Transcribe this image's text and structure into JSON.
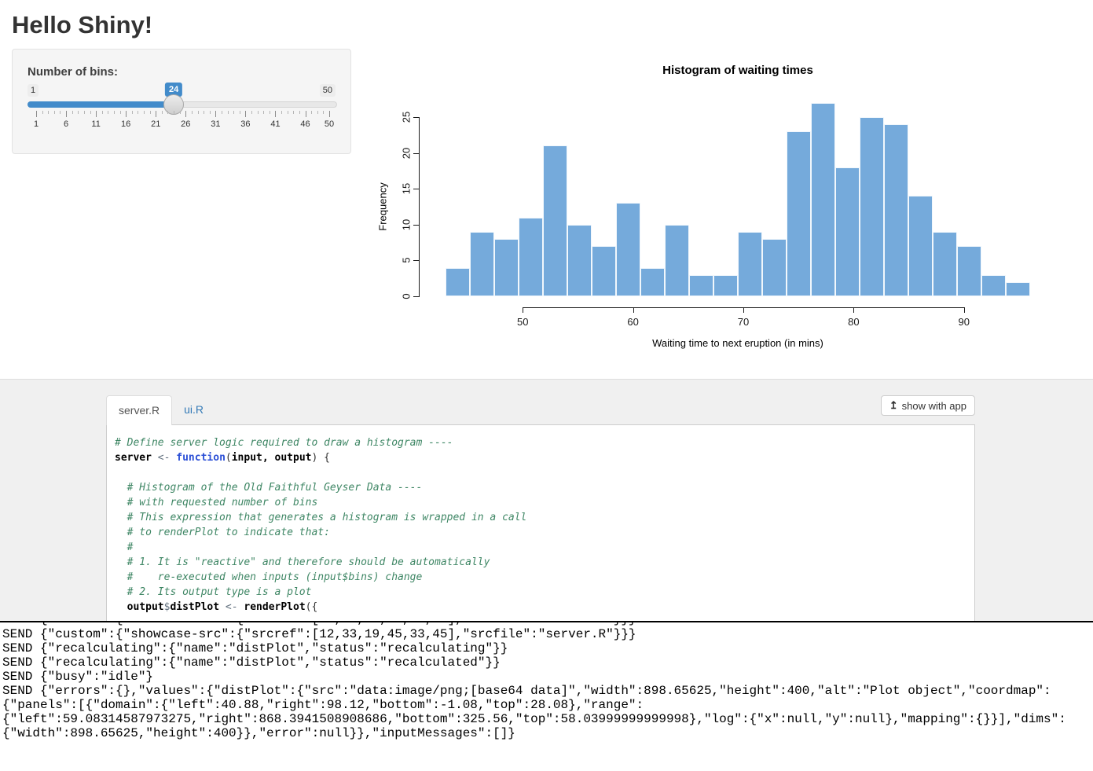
{
  "page": {
    "title": "Hello Shiny!"
  },
  "bins_slider": {
    "label": "Number of bins:",
    "min": 1,
    "max": 50,
    "value": 24,
    "min_label": "1",
    "max_label": "50",
    "value_label": "24",
    "grid_labels": [
      1,
      6,
      11,
      16,
      21,
      26,
      31,
      36,
      41,
      46,
      50
    ],
    "accent_color": "#428bca"
  },
  "chart_data": {
    "type": "bar",
    "title": "Histogram of waiting times",
    "xlabel": "Waiting time to next eruption (in mins)",
    "ylabel": "Frequency",
    "xlim": [
      43,
      96
    ],
    "ylim": [
      0,
      25
    ],
    "bins": 24,
    "bin_edges_note": "24 equal bins from 43 to 96",
    "counts": [
      4,
      9,
      8,
      11,
      21,
      10,
      7,
      13,
      4,
      10,
      3,
      3,
      9,
      8,
      23,
      27,
      18,
      25,
      24,
      14,
      9,
      7,
      3,
      2
    ],
    "x_ticks": [
      50,
      60,
      70,
      80,
      90
    ],
    "y_ticks": [
      0,
      5,
      10,
      15,
      20,
      25
    ],
    "bar_color": "#75AADB",
    "bar_border": "#FFFFFF",
    "grid": false,
    "legend": false
  },
  "showcase": {
    "tabs": [
      {
        "label": "server.R",
        "active": true
      },
      {
        "label": "ui.R",
        "active": false
      }
    ],
    "show_with_app_label": "show with app",
    "show_with_app_icon": "level-up-arrow",
    "code_lines": [
      [
        {
          "c": "cm",
          "t": "# Define server logic required to draw a histogram ----"
        }
      ],
      [
        {
          "c": "id",
          "t": "server"
        },
        {
          "c": "op",
          "t": " <- "
        },
        {
          "c": "kw",
          "t": "function"
        },
        {
          "c": "pn",
          "t": "("
        },
        {
          "c": "id",
          "t": "input, output"
        },
        {
          "c": "pn",
          "t": ") {"
        }
      ],
      [],
      [
        {
          "c": "cm",
          "t": "  # Histogram of the Old Faithful Geyser Data ----"
        }
      ],
      [
        {
          "c": "cm",
          "t": "  # with requested number of bins"
        }
      ],
      [
        {
          "c": "cm",
          "t": "  # This expression that generates a histogram is wrapped in a call"
        }
      ],
      [
        {
          "c": "cm",
          "t": "  # to renderPlot to indicate that:"
        }
      ],
      [
        {
          "c": "cm",
          "t": "  #"
        }
      ],
      [
        {
          "c": "cm",
          "t": "  # 1. It is \"reactive\" and therefore should be automatically"
        }
      ],
      [
        {
          "c": "cm",
          "t": "  #    re-executed when inputs (input$bins) change"
        }
      ],
      [
        {
          "c": "cm",
          "t": "  # 2. Its output type is a plot"
        }
      ],
      [
        {
          "c": "id",
          "t": "  output"
        },
        {
          "c": "op",
          "t": "$"
        },
        {
          "c": "id",
          "t": "distPlot"
        },
        {
          "c": "op",
          "t": " <- "
        },
        {
          "c": "id",
          "t": "renderPlot"
        },
        {
          "c": "pn",
          "t": "({"
        }
      ]
    ]
  },
  "console": {
    "clipped_line": "SEND {\"custom\":{\"showcase-src\":{\"srcref\":[12,33,19,45,33,45],\"srcfile\":\"server.R\"}}}",
    "lines": [
      "SEND {\"custom\":{\"showcase-src\":{\"srcref\":[12,33,19,45,33,45],\"srcfile\":\"server.R\"}}}",
      "SEND {\"recalculating\":{\"name\":\"distPlot\",\"status\":\"recalculating\"}}",
      "SEND {\"recalculating\":{\"name\":\"distPlot\",\"status\":\"recalculated\"}}",
      "SEND {\"busy\":\"idle\"}",
      "SEND {\"errors\":{},\"values\":{\"distPlot\":{\"src\":\"data:image/png;[base64 data]\",\"width\":898.65625,\"height\":400,\"alt\":\"Plot object\",\"coordmap\":",
      "{\"panels\":[{\"domain\":{\"left\":40.88,\"right\":98.12,\"bottom\":-1.08,\"top\":28.08},\"range\":",
      "{\"left\":59.08314587973275,\"right\":868.3941508908686,\"bottom\":325.56,\"top\":58.03999999999998},\"log\":{\"x\":null,\"y\":null},\"mapping\":{}}],\"dims\":",
      "{\"width\":898.65625,\"height\":400}},\"error\":null}},\"inputMessages\":[]}"
    ]
  }
}
